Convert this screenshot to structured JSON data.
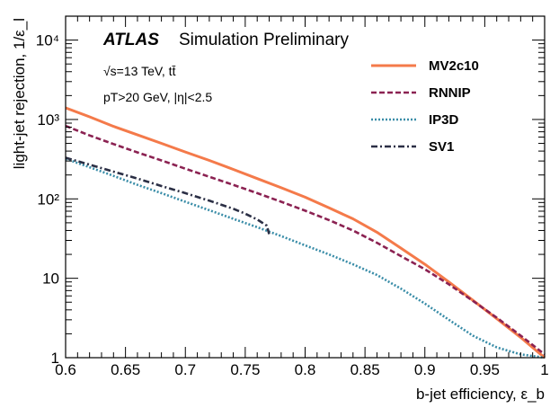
{
  "chart_data": {
    "type": "line",
    "title": "",
    "experiment_label": "ATLAS",
    "experiment_sublabel": "Simulation Preliminary",
    "annotations": [
      {
        "id": "energy",
        "text": "√s=13 TeV, tt̄"
      },
      {
        "id": "cuts",
        "text": "pT>20 GeV, |η|<2.5"
      }
    ],
    "xlabel": "b-jet efficiency, ε_b",
    "ylabel": "light-jet rejection, 1/ε_l",
    "xlim": [
      0.6,
      1.0
    ],
    "ylim": [
      1,
      20000
    ],
    "yscale": "log",
    "xticks": [
      0.6,
      0.65,
      0.7,
      0.75,
      0.8,
      0.85,
      0.9,
      0.95,
      1.0
    ],
    "xtick_labels": [
      "0.6",
      "0.65",
      "0.7",
      "0.75",
      "0.8",
      "0.85",
      "0.9",
      "0.95",
      "1"
    ],
    "yticks": [
      1,
      10,
      100,
      1000,
      10000
    ],
    "ytick_labels": [
      "1",
      "10",
      "10²",
      "10³",
      "10⁴"
    ],
    "legend_position": "top-right",
    "series": [
      {
        "name": "MV2c10",
        "color": "#f47a4a",
        "style": "solid",
        "x": [
          0.6,
          0.62,
          0.64,
          0.66,
          0.68,
          0.7,
          0.72,
          0.74,
          0.76,
          0.78,
          0.8,
          0.82,
          0.84,
          0.86,
          0.88,
          0.9,
          0.92,
          0.94,
          0.96,
          0.98,
          1.0
        ],
        "y": [
          1400,
          1080,
          820,
          640,
          500,
          390,
          305,
          235,
          180,
          138,
          105,
          77,
          56,
          38,
          24,
          15,
          9,
          5.3,
          3.1,
          1.8,
          1.0
        ]
      },
      {
        "name": "RNNIP",
        "color": "#8b2252",
        "style": "dashed",
        "x": [
          0.6,
          0.62,
          0.64,
          0.66,
          0.68,
          0.7,
          0.72,
          0.74,
          0.76,
          0.78,
          0.8,
          0.82,
          0.84,
          0.86,
          0.88,
          0.9,
          0.92,
          0.94,
          0.96,
          0.98,
          1.0
        ],
        "y": [
          830,
          630,
          490,
          385,
          305,
          240,
          190,
          150,
          118,
          92,
          71,
          54,
          40,
          28,
          19,
          13,
          8.4,
          5.2,
          3.2,
          1.9,
          1.1
        ]
      },
      {
        "name": "IP3D",
        "color": "#3a8da8",
        "style": "dotted",
        "x": [
          0.6,
          0.62,
          0.64,
          0.66,
          0.68,
          0.7,
          0.72,
          0.74,
          0.76,
          0.78,
          0.8,
          0.82,
          0.84,
          0.86,
          0.88,
          0.9,
          0.92,
          0.94,
          0.96,
          0.98,
          1.0
        ],
        "y": [
          320,
          250,
          195,
          150,
          118,
          92,
          72,
          56,
          44,
          34,
          26,
          20,
          15,
          11,
          7.4,
          4.8,
          3.0,
          1.9,
          1.35,
          1.1,
          1.0
        ]
      },
      {
        "name": "SV1",
        "color": "#2b2f45",
        "style": "dashdot",
        "x": [
          0.6,
          0.62,
          0.64,
          0.66,
          0.68,
          0.7,
          0.72,
          0.74,
          0.75,
          0.76,
          0.768,
          0.77
        ],
        "y": [
          330,
          270,
          220,
          180,
          145,
          118,
          95,
          75,
          65,
          55,
          46,
          36
        ]
      }
    ]
  }
}
